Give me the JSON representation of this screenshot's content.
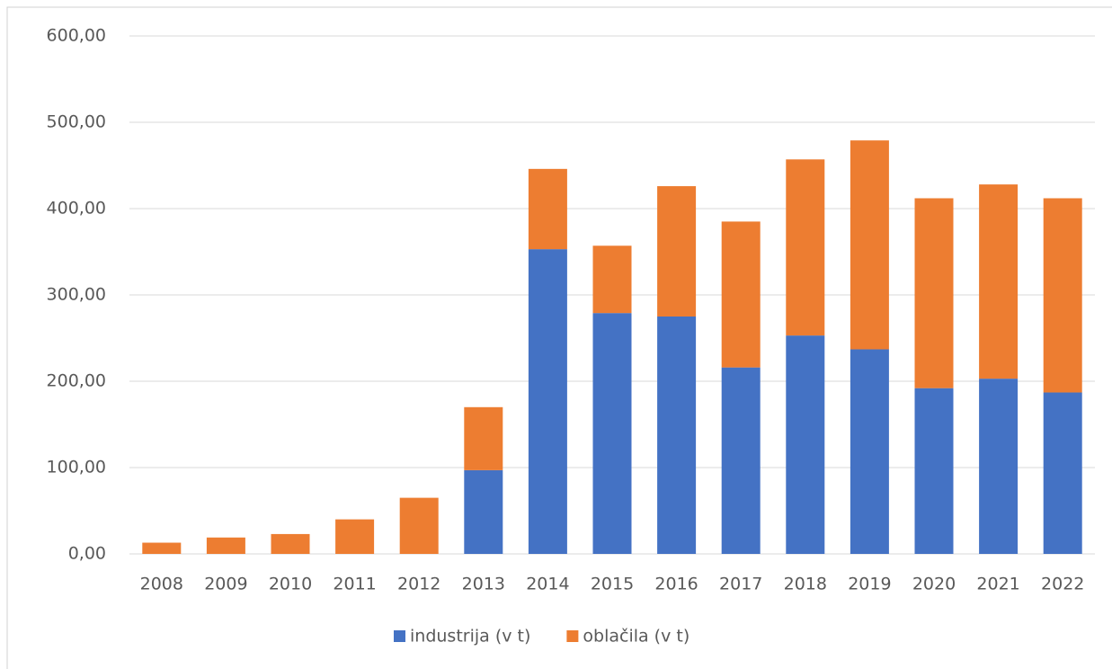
{
  "chart_data": {
    "type": "stacked_bar",
    "categories": [
      "2008",
      "2009",
      "2010",
      "2011",
      "2012",
      "2013",
      "2014",
      "2015",
      "2016",
      "2017",
      "2018",
      "2019",
      "2020",
      "2021",
      "2022"
    ],
    "series": [
      {
        "name": "industrija (v t)",
        "color": "#4472c4",
        "values": [
          0,
          0,
          0,
          0,
          0,
          97,
          353,
          279,
          275,
          216,
          253,
          237,
          192,
          203,
          187
        ]
      },
      {
        "name": "oblačila (v t)",
        "color": "#ed7d31",
        "values": [
          13,
          19,
          23,
          40,
          65,
          73,
          93,
          78,
          151,
          169,
          204,
          242,
          220,
          225,
          225
        ]
      }
    ],
    "ylim": [
      0,
      600
    ],
    "yticks": [
      {
        "value": 0,
        "label": "0,00"
      },
      {
        "value": 100,
        "label": "100,00"
      },
      {
        "value": 200,
        "label": "200,00"
      },
      {
        "value": 300,
        "label": "300,00"
      },
      {
        "value": 400,
        "label": "400,00"
      },
      {
        "value": 500,
        "label": "500,00"
      },
      {
        "value": 600,
        "label": "600,00"
      }
    ],
    "grid": true,
    "legend": "bottom"
  }
}
